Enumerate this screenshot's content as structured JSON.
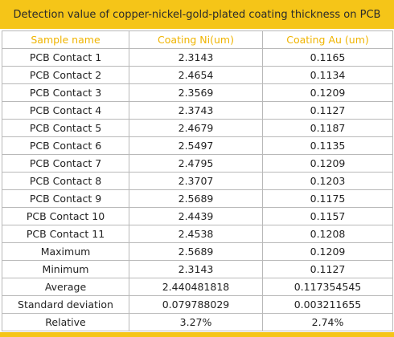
{
  "title": "Detection value of copper-nickel-gold-plated coating thickness on PCB",
  "colors": {
    "accent": "#f5c518",
    "header_text": "#f0b400",
    "border": "#b9b9b9"
  },
  "table": {
    "headers": [
      "Sample name",
      "Coating Ni(um)",
      "Coating Au (um)"
    ],
    "rows": [
      [
        "PCB Contact 1",
        "2.3143",
        "0.1165"
      ],
      [
        "PCB Contact 2",
        "2.4654",
        "0.1134"
      ],
      [
        "PCB Contact 3",
        "2.3569",
        "0.1209"
      ],
      [
        "PCB Contact 4",
        "2.3743",
        "0.1127"
      ],
      [
        "PCB Contact 5",
        "2.4679",
        "0.1187"
      ],
      [
        "PCB Contact 6",
        "2.5497",
        "0.1135"
      ],
      [
        "PCB Contact 7",
        "2.4795",
        "0.1209"
      ],
      [
        "PCB Contact 8",
        "2.3707",
        "0.1203"
      ],
      [
        "PCB Contact 9",
        "2.5689",
        "0.1175"
      ],
      [
        "PCB Contact 10",
        "2.4439",
        "0.1157"
      ],
      [
        "PCB Contact 11",
        "2.4538",
        "0.1208"
      ],
      [
        "Maximum",
        "2.5689",
        "0.1209"
      ],
      [
        "Minimum",
        "2.3143",
        "0.1127"
      ],
      [
        "Average",
        "2.440481818",
        "0.117354545"
      ],
      [
        "Standard deviation",
        "0.079788029",
        "0.003211655"
      ],
      [
        "Relative",
        "3.27%",
        "2.74%"
      ]
    ]
  }
}
